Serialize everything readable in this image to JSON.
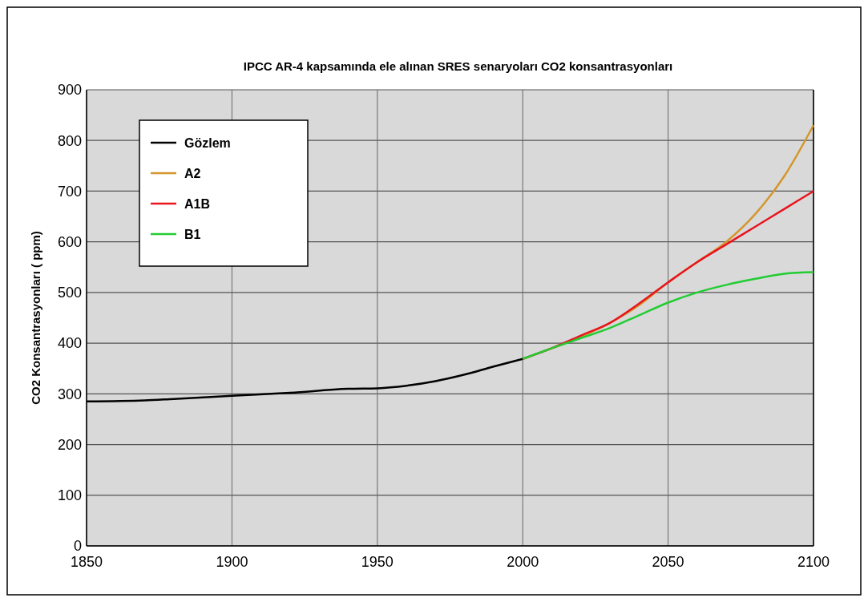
{
  "chart_data": {
    "type": "line",
    "title": "IPCC AR-4 kapsamında ele alınan SRES senaryoları CO2 konsantrasyonları",
    "ylabel": "CO2 Konsantrasyonları ( ppm)",
    "xlim": [
      1850,
      2100
    ],
    "xticks": [
      1850,
      1900,
      1950,
      2000,
      2050,
      2100
    ],
    "ylim": [
      0,
      900
    ],
    "yticks": [
      0,
      100,
      200,
      300,
      400,
      500,
      600,
      700,
      800,
      900
    ],
    "grid": true,
    "legend": "top left",
    "series": [
      {
        "name": "Gözlem",
        "color": "#000000",
        "x": [
          1850,
          1870,
          1880,
          1900,
          1920,
          1940,
          1950,
          1960,
          1970,
          1980,
          1990,
          2000
        ],
        "values": [
          285,
          287,
          290,
          296,
          302,
          310,
          311,
          316,
          325,
          338,
          354,
          369
        ]
      },
      {
        "name": "A2",
        "color": "#d4962e",
        "x": [
          2000,
          2010,
          2020,
          2030,
          2040,
          2050,
          2060,
          2070,
          2080,
          2090,
          2100
        ],
        "values": [
          369,
          390,
          413,
          440,
          475,
          520,
          560,
          600,
          655,
          730,
          830
        ]
      },
      {
        "name": "A1B",
        "color": "#e8141e",
        "x": [
          2000,
          2010,
          2020,
          2030,
          2040,
          2050,
          2060,
          2070,
          2080,
          2090,
          2100
        ],
        "values": [
          369,
          390,
          415,
          440,
          478,
          520,
          560,
          595,
          630,
          665,
          700
        ]
      },
      {
        "name": "B1",
        "color": "#22cc33",
        "x": [
          2000,
          2010,
          2020,
          2030,
          2040,
          2050,
          2060,
          2070,
          2080,
          2090,
          2100
        ],
        "values": [
          369,
          390,
          410,
          430,
          455,
          480,
          500,
          515,
          527,
          537,
          540
        ]
      }
    ]
  }
}
